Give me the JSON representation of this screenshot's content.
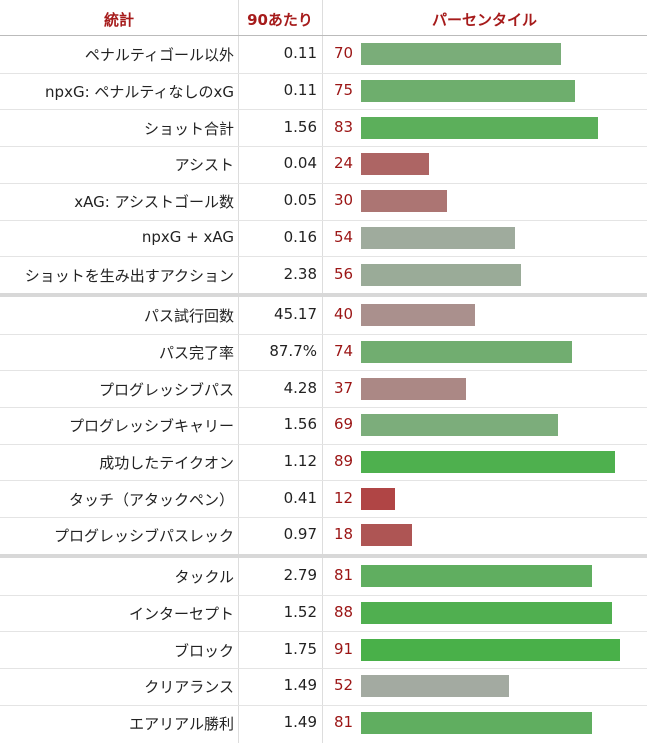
{
  "header": {
    "stat": "統計",
    "per90": "90あたり",
    "percentile": "パーセンタイル"
  },
  "groups": [
    [
      [
        "ペナルティゴール以外",
        "0.11",
        70
      ],
      [
        "npxG: ペナルティなしのxG",
        "0.11",
        75
      ],
      [
        "ショット合計",
        "1.56",
        83
      ],
      [
        "アシスト",
        "0.04",
        24
      ],
      [
        "xAG: アシストゴール数",
        "0.05",
        30
      ],
      [
        "npxG + xAG",
        "0.16",
        54
      ],
      [
        "ショットを生み出すアクション",
        "2.38",
        56
      ]
    ],
    [
      [
        "パス試行回数",
        "45.17",
        40
      ],
      [
        "パス完了率",
        "87.7%",
        74
      ],
      [
        "プログレッシブパス",
        "4.28",
        37
      ],
      [
        "プログレッシブキャリー",
        "1.56",
        69
      ],
      [
        "成功したテイクオン",
        "1.12",
        89
      ],
      [
        "タッチ（アタックペン）",
        "0.41",
        12
      ],
      [
        "プログレッシブパスレック",
        "0.97",
        18
      ]
    ],
    [
      [
        "タックル",
        "2.79",
        81
      ],
      [
        "インターセプト",
        "1.52",
        88
      ],
      [
        "ブロック",
        "1.75",
        91
      ],
      [
        "クリアランス",
        "1.49",
        52
      ],
      [
        "エアリアル勝利",
        "1.49",
        81
      ]
    ]
  ]
}
